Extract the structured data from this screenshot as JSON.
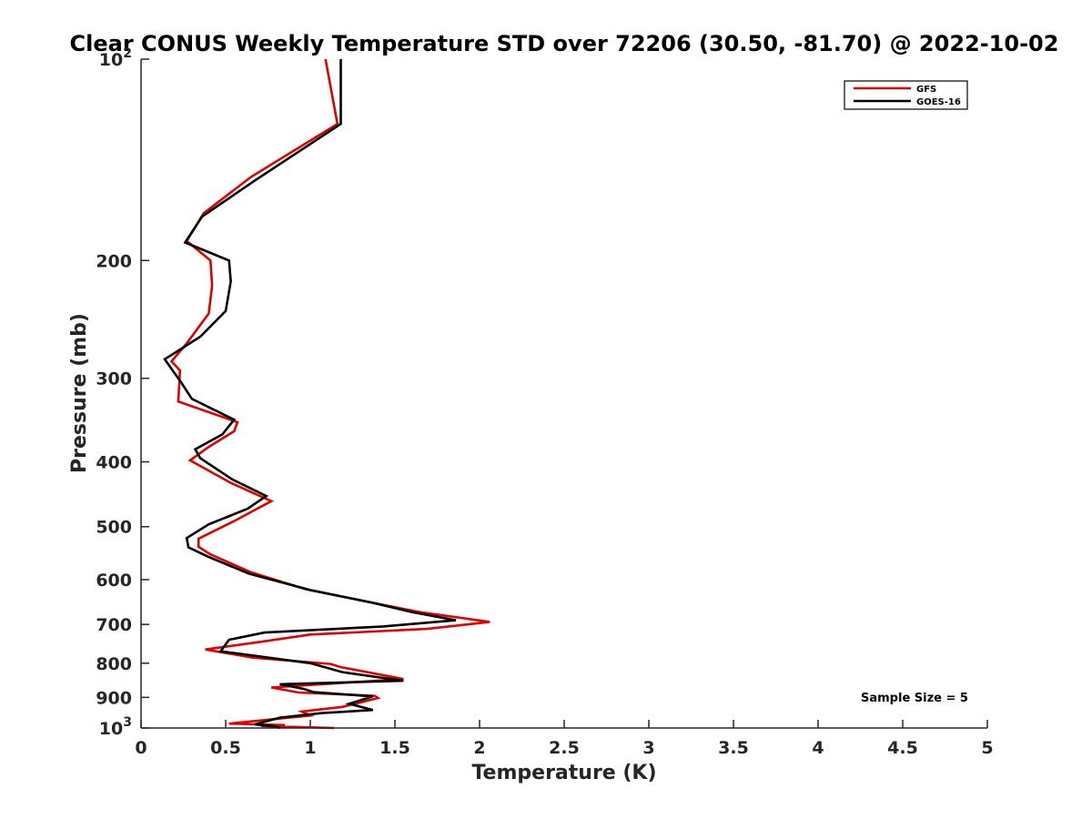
{
  "chart_data": {
    "type": "line",
    "title": "Clear CONUS Weekly Temperature STD over 72206 (30.50, -81.70) @ 2022-10-02",
    "xlabel": "Temperature (K)",
    "ylabel": "Pressure (mb)",
    "xlim": [
      0,
      5
    ],
    "ylim": [
      100,
      1000
    ],
    "y_scale": "log",
    "y_reversed": true,
    "x_ticks": [
      0,
      0.5,
      1,
      1.5,
      2,
      2.5,
      3,
      3.5,
      4,
      4.5,
      5
    ],
    "x_tick_labels": [
      "0",
      "0.5",
      "1",
      "1.5",
      "2",
      "2.5",
      "3",
      "3.5",
      "4",
      "4.5",
      "5"
    ],
    "y_ticks": [
      {
        "value": 100,
        "label": "10",
        "sup": "2"
      },
      {
        "value": 200,
        "label": "200",
        "sup": ""
      },
      {
        "value": 300,
        "label": "300",
        "sup": ""
      },
      {
        "value": 400,
        "label": "400",
        "sup": ""
      },
      {
        "value": 500,
        "label": "500",
        "sup": ""
      },
      {
        "value": 600,
        "label": "600",
        "sup": ""
      },
      {
        "value": 700,
        "label": "700",
        "sup": ""
      },
      {
        "value": 800,
        "label": "800",
        "sup": ""
      },
      {
        "value": 900,
        "label": "900",
        "sup": ""
      },
      {
        "value": 1000,
        "label": "10",
        "sup": "3"
      }
    ],
    "grid": false,
    "legend_position": "top-right",
    "annotation": "Sample Size = 5",
    "series": [
      {
        "name": "GFS",
        "color": "#e00000",
        "points": [
          [
            1.09,
            100
          ],
          [
            1.16,
            125
          ],
          [
            0.65,
            150
          ],
          [
            0.37,
            170
          ],
          [
            0.27,
            187
          ],
          [
            0.41,
            200
          ],
          [
            0.42,
            218
          ],
          [
            0.4,
            240
          ],
          [
            0.27,
            266
          ],
          [
            0.18,
            283
          ],
          [
            0.23,
            292
          ],
          [
            0.22,
            325
          ],
          [
            0.57,
            349
          ],
          [
            0.55,
            360
          ],
          [
            0.4,
            380
          ],
          [
            0.29,
            398
          ],
          [
            0.53,
            430
          ],
          [
            0.77,
            458
          ],
          [
            0.54,
            492
          ],
          [
            0.34,
            521
          ],
          [
            0.34,
            536
          ],
          [
            0.41,
            550
          ],
          [
            0.65,
            585
          ],
          [
            0.97,
            620
          ],
          [
            1.4,
            652
          ],
          [
            1.66,
            672
          ],
          [
            2.06,
            694
          ],
          [
            1.69,
            711
          ],
          [
            1.0,
            725
          ],
          [
            0.73,
            742
          ],
          [
            0.38,
            763
          ],
          [
            0.66,
            785
          ],
          [
            1.12,
            802
          ],
          [
            1.18,
            811
          ],
          [
            1.55,
            845
          ],
          [
            0.77,
            870
          ],
          [
            0.93,
            885
          ],
          [
            1.38,
            895
          ],
          [
            1.4,
            902
          ],
          [
            1.19,
            930
          ],
          [
            0.95,
            945
          ],
          [
            1.0,
            958
          ],
          [
            0.52,
            985
          ],
          [
            0.85,
            990
          ],
          [
            0.71,
            993
          ],
          [
            1.14,
            1000
          ]
        ]
      },
      {
        "name": "GOES-16",
        "color": "#000000",
        "points": [
          [
            1.18,
            100
          ],
          [
            1.18,
            125
          ],
          [
            0.67,
            152
          ],
          [
            0.36,
            172
          ],
          [
            0.26,
            188
          ],
          [
            0.52,
            200
          ],
          [
            0.53,
            215
          ],
          [
            0.5,
            238
          ],
          [
            0.35,
            260
          ],
          [
            0.14,
            281
          ],
          [
            0.24,
            305
          ],
          [
            0.3,
            322
          ],
          [
            0.55,
            346
          ],
          [
            0.48,
            364
          ],
          [
            0.32,
            383
          ],
          [
            0.35,
            395
          ],
          [
            0.54,
            425
          ],
          [
            0.74,
            450
          ],
          [
            0.63,
            470
          ],
          [
            0.4,
            496
          ],
          [
            0.27,
            520
          ],
          [
            0.28,
            537
          ],
          [
            0.4,
            555
          ],
          [
            0.64,
            588
          ],
          [
            1.0,
            622
          ],
          [
            1.37,
            650
          ],
          [
            1.6,
            671
          ],
          [
            1.86,
            690
          ],
          [
            1.43,
            705
          ],
          [
            0.73,
            720
          ],
          [
            0.52,
            738
          ],
          [
            0.47,
            768
          ],
          [
            1.0,
            800
          ],
          [
            1.19,
            825
          ],
          [
            1.55,
            850
          ],
          [
            0.82,
            860
          ],
          [
            0.96,
            874
          ],
          [
            1.02,
            884
          ],
          [
            1.37,
            897
          ],
          [
            1.23,
            920
          ],
          [
            1.37,
            940
          ],
          [
            1.07,
            950
          ],
          [
            0.82,
            965
          ],
          [
            0.67,
            988
          ],
          [
            0.78,
            993
          ],
          [
            0.82,
            1000
          ]
        ]
      }
    ]
  }
}
